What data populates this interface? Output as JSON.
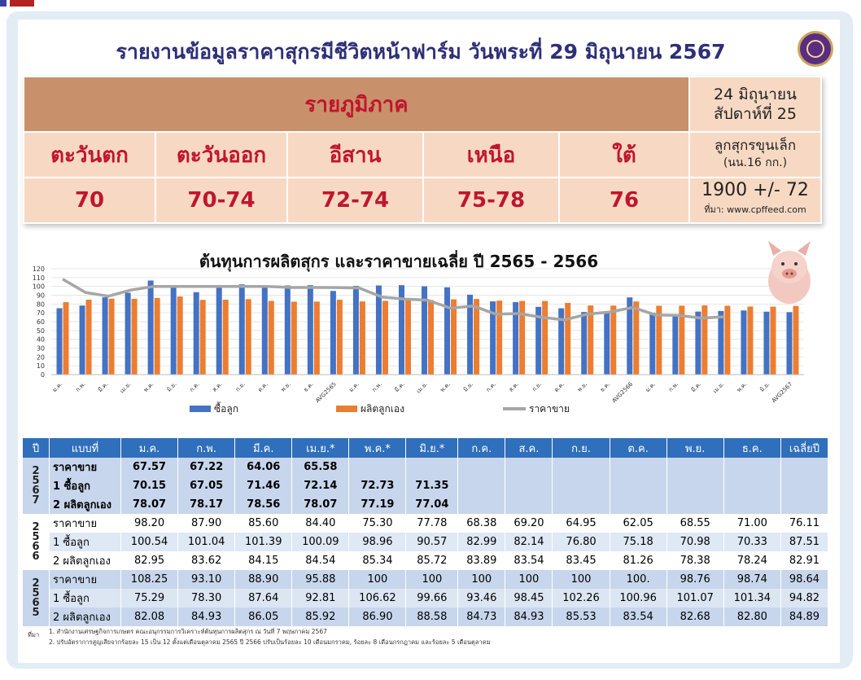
{
  "title": "รายงานข้อมูลราคาสุกรมีชีวิตหน้าฟาร์ม วันพระที่ 29 มิถุนายน 2567",
  "region": {
    "header": "รายภูมิภาค",
    "date_line1": "24 มิถุนายน",
    "date_line2": "สัปดาห์ที่ 25",
    "names": [
      "ตะวันตก",
      "ตะวันออก",
      "อีสาน",
      "เหนือ",
      "ใต้"
    ],
    "prices": [
      "70",
      "70-74",
      "72-74",
      "75-78",
      "76"
    ],
    "piglet_label1": "ลูกสุกรขุนเล็ก",
    "piglet_label2": "(นน.16 กก.)",
    "piglet_price": "1900 +/- 72",
    "source": "ที่มา: www.cpffeed.com"
  },
  "chart_data": {
    "type": "bar",
    "title": "ต้นทุนการผลิตสุกร และราคาขายเฉลี่ย ปี 2565 - 2566",
    "ylim": [
      0,
      120
    ],
    "yticks": [
      0,
      10,
      20,
      30,
      40,
      50,
      60,
      70,
      80,
      90,
      100,
      110,
      120
    ],
    "categories": [
      "ม.ค.",
      "ก.พ.",
      "มี.ค.",
      "เม.ย.",
      "พ.ค.",
      "มิ.ย.",
      "ก.ค.",
      "ส.ค.",
      "ก.ย.",
      "ต.ค.",
      "พ.ย.",
      "ธ.ค.",
      "AVG2565",
      "ม.ค.",
      "ก.พ.",
      "มี.ค.",
      "เม.ย.",
      "พ.ค.",
      "มิ.ย.",
      "ก.ค.",
      "ส.ค.",
      "ก.ย.",
      "ต.ค.",
      "พ.ย.",
      "ธ.ค.",
      "AVG2566",
      "ม.ค.",
      "ก.พ.",
      "มี.ค.",
      "เม.ย.",
      "พ.ค.",
      "มิ.ย.",
      "AVG2567"
    ],
    "series": [
      {
        "name": "ซื้อลูก",
        "color": "#4472c4",
        "values": [
          75.29,
          78.3,
          87.64,
          92.81,
          106.62,
          99.66,
          93.46,
          98.45,
          102.26,
          100.96,
          101.07,
          101.34,
          94.82,
          100.54,
          101.04,
          101.39,
          100.09,
          98.96,
          90.57,
          82.99,
          82.14,
          76.8,
          75.18,
          70.98,
          70.33,
          87.51,
          70.15,
          67.05,
          71.46,
          72.14,
          72.73,
          71.35,
          70.81
        ]
      },
      {
        "name": "ผลิตลูกเอง",
        "color": "#ed7d31",
        "values": [
          82.08,
          84.93,
          86.05,
          85.92,
          86.9,
          88.58,
          84.73,
          84.93,
          85.53,
          83.54,
          82.68,
          82.8,
          84.89,
          82.95,
          83.62,
          84.15,
          84.54,
          85.34,
          85.72,
          83.89,
          83.54,
          83.45,
          81.26,
          78.38,
          78.24,
          82.91,
          78.07,
          78.17,
          78.56,
          78.07,
          77.19,
          77.04,
          77.85
        ]
      },
      {
        "name": "ราคาขาย",
        "color": "#a6a6a6",
        "values": [
          108.25,
          93.1,
          88.9,
          95.88,
          100,
          100,
          100,
          100,
          100,
          100,
          98.76,
          98.74,
          98.64,
          98.2,
          87.9,
          85.6,
          84.4,
          75.3,
          77.78,
          68.38,
          69.2,
          64.95,
          62.05,
          68.55,
          71.0,
          76.11,
          67.57,
          67.22,
          64.06,
          65.58,
          null,
          null,
          null
        ]
      }
    ]
  },
  "table": {
    "headers": [
      "ปี",
      "แบบที่",
      "ม.ค.",
      "ก.พ.",
      "มี.ค.",
      "เม.ย.*",
      "พ.ค.*",
      "มิ.ย.*",
      "ก.ค.",
      "ส.ค.",
      "ก.ย.",
      "ต.ค.",
      "พ.ย.",
      "ธ.ค.",
      "เฉลี่ยปี"
    ],
    "groups": [
      {
        "year": [
          "2",
          "5",
          "6",
          "7"
        ],
        "rows": [
          {
            "label": "ราคาขาย",
            "cells": [
              "67.57",
              "67.22",
              "64.06",
              "65.58",
              "",
              "",
              "",
              "",
              "",
              "",
              "",
              "",
              ""
            ]
          },
          {
            "label": "1 ซื้อลูก",
            "cells": [
              "70.15",
              "67.05",
              "71.46",
              "72.14",
              "72.73",
              "71.35",
              "",
              "",
              "",
              "",
              "",
              "",
              ""
            ]
          },
          {
            "label": "2 ผลิตลูกเอง",
            "cells": [
              "78.07",
              "78.17",
              "78.56",
              "78.07",
              "77.19",
              "77.04",
              "",
              "",
              "",
              "",
              "",
              "",
              ""
            ]
          }
        ]
      },
      {
        "year": [
          "2",
          "5",
          "6",
          "6"
        ],
        "rows": [
          {
            "label": "ราคาขาย",
            "cells": [
              "98.20",
              "87.90",
              "85.60",
              "84.40",
              "75.30",
              "77.78",
              "68.38",
              "69.20",
              "64.95",
              "62.05",
              "68.55",
              "71.00",
              "76.11"
            ]
          },
          {
            "label": "1 ซื้อลูก",
            "cells": [
              "100.54",
              "101.04",
              "101.39",
              "100.09",
              "98.96",
              "90.57",
              "82.99",
              "82.14",
              "76.80",
              "75.18",
              "70.98",
              "70.33",
              "87.51"
            ]
          },
          {
            "label": "2 ผลิตลูกเอง",
            "cells": [
              "82.95",
              "83.62",
              "84.15",
              "84.54",
              "85.34",
              "85.72",
              "83.89",
              "83.54",
              "83.45",
              "81.26",
              "78.38",
              "78.24",
              "82.91"
            ]
          }
        ]
      },
      {
        "year": [
          "2",
          "5",
          "6",
          "5"
        ],
        "rows": [
          {
            "label": "ราคาขาย",
            "cells": [
              "108.25",
              "93.10",
              "88.90",
              "95.88",
              "100",
              "100",
              "100",
              "100",
              "100",
              "100.",
              "98.76",
              "98.74",
              "98.64"
            ]
          },
          {
            "label": "1 ซื้อลูก",
            "cells": [
              "75.29",
              "78.30",
              "87.64",
              "92.81",
              "106.62",
              "99.66",
              "93.46",
              "98.45",
              "102.26",
              "100.96",
              "101.07",
              "101.34",
              "94.82"
            ]
          },
          {
            "label": "2 ผลิตลูกเอง",
            "cells": [
              "82.08",
              "84.93",
              "86.05",
              "85.92",
              "86.90",
              "88.58",
              "84.73",
              "84.93",
              "85.53",
              "83.54",
              "82.68",
              "82.80",
              "84.89"
            ]
          }
        ]
      }
    ]
  },
  "footnote": {
    "key": "ที่มา",
    "line1": "1. สำนักงานเศรษฐกิจการเกษตร คณะอนุกรรมการวิเคราะห์ต้นทุนการผลิตสุกร ณ วันที่ 7 พฤษภาคม 2567",
    "line2": "2. ปรับอัตราการสูญเสียจากร้อยละ 15 เป็น 12 ตั้งแต่เดือนตุลาคม 2565 ปี 2566 ปรับเป็นร้อยละ 10 เดือนมกราคม, ร้อยละ 8 เดือนกรกฎาคม และร้อยละ 5 เดือนตุลาคม"
  }
}
